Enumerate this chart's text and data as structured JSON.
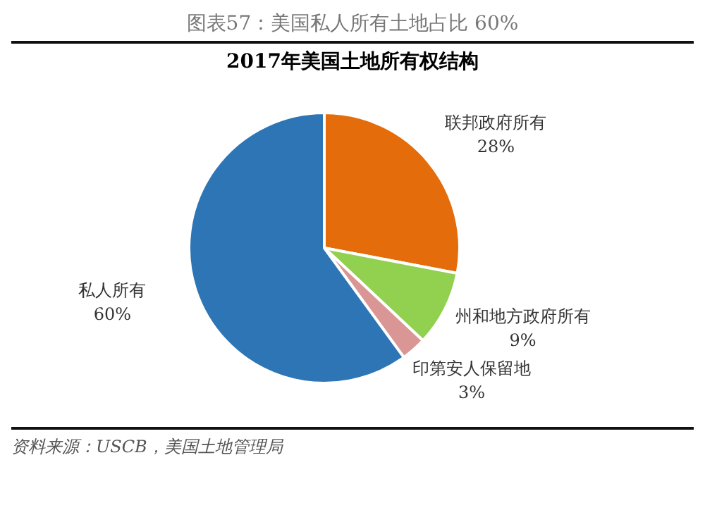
{
  "chart_data": {
    "type": "pie",
    "title": "图表57：美国私人所有土地占比 60%",
    "subtitle": "2017年美国土地所有权结构",
    "categories": [
      "联邦政府所有",
      "州和地方政府所有",
      "印第安人保留地",
      "私人所有"
    ],
    "values": [
      28,
      9,
      3,
      60
    ],
    "value_labels": [
      "28%",
      "9%",
      "3%",
      "60%"
    ],
    "colors": [
      "#e46c0a",
      "#92d050",
      "#d99694",
      "#2e75b6"
    ],
    "annotations": [
      "资料来源：USCB，美国土地管理局"
    ],
    "legend": false
  }
}
